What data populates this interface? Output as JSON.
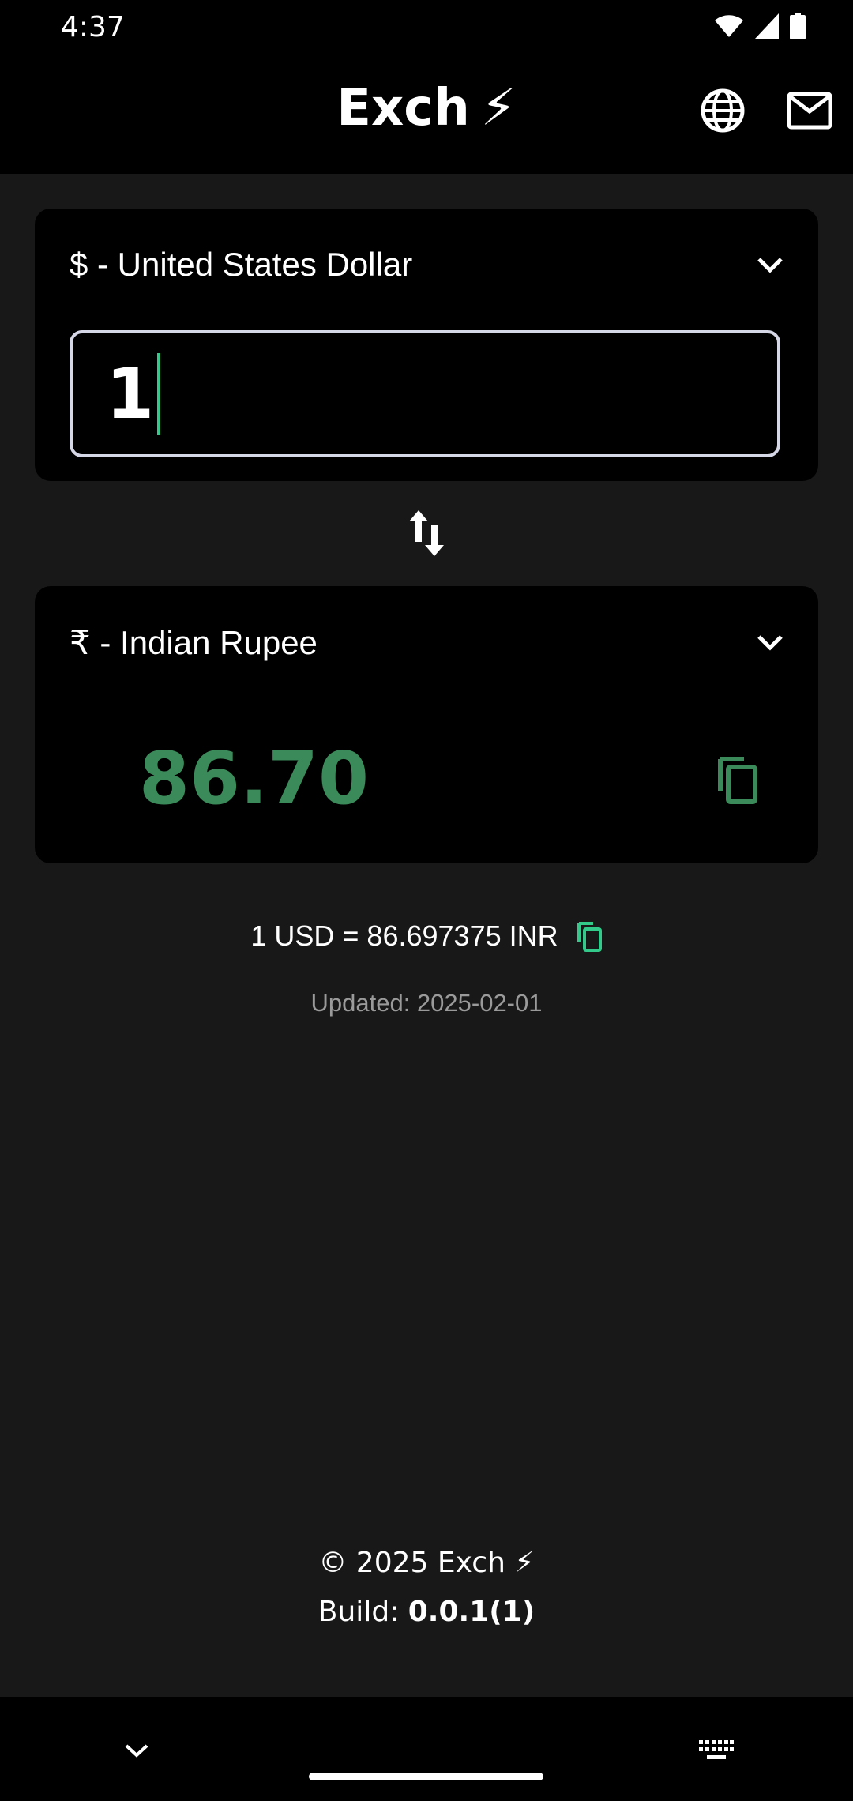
{
  "status_bar": {
    "time": "4:37",
    "icons": [
      "wifi-icon",
      "signal-icon",
      "battery-icon"
    ]
  },
  "app_bar": {
    "title": "Exch",
    "title_emoji": "⚡",
    "actions": [
      "globe-icon",
      "mail-icon"
    ]
  },
  "from_card": {
    "currency_label": "$ - United States Dollar",
    "amount_value": "1"
  },
  "to_card": {
    "currency_label": "₹ - Indian Rupee",
    "result_value": "86.70"
  },
  "rate": {
    "text": "1 USD = 86.697375 INR",
    "updated": "Updated: 2025-02-01"
  },
  "footer": {
    "copyright": "© 2025 Exch ⚡",
    "build_label": "Build: ",
    "build_number": "0.0.1(1)"
  },
  "colors": {
    "background": "#181818",
    "card": "#000000",
    "accent_green": "#3b8a5a",
    "caret": "#33c98a",
    "input_border": "#d6d7e6",
    "muted_text": "#9a9a9a"
  }
}
